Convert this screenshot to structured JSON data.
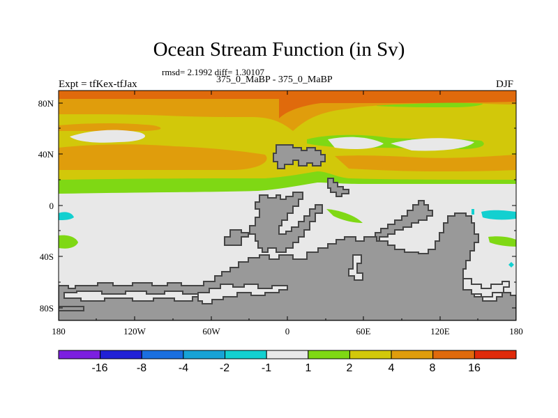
{
  "colors": {
    "land": "#999999",
    "land_outline": "#444444",
    "sea_neutral": "#e8e8e8",
    "levels": [
      "#7c1fe0",
      "#2121d6",
      "#1a6fe0",
      "#18a3d6",
      "#13d0d0",
      "#e8e8e8",
      "#7fd814",
      "#d2c80a",
      "#e09d0c",
      "#e06a0c",
      "#e02a0a"
    ]
  },
  "header": {
    "title": "Ocean Stream Function (in Sv)",
    "stats": "rmsd= 2.1992 diff= 1.30107",
    "subtitle": "375_0_MaBP - 375_0_MaBP",
    "left_label": "Expt = tfKex-tfJax",
    "right_label": "DJF"
  },
  "map": {
    "lon_range": [
      -180,
      180
    ],
    "lat_range": [
      -90,
      90
    ],
    "lat_ticks": [
      "80N",
      "40N",
      "0",
      "40S",
      "80S"
    ],
    "lon_ticks": [
      "180",
      "120W",
      "60W",
      "0",
      "60E",
      "120E",
      "180"
    ]
  },
  "colorbar": {
    "labels": [
      "-16",
      "-8",
      "-4",
      "-2",
      "-1",
      "1",
      "2",
      "4",
      "8",
      "16"
    ]
  }
}
